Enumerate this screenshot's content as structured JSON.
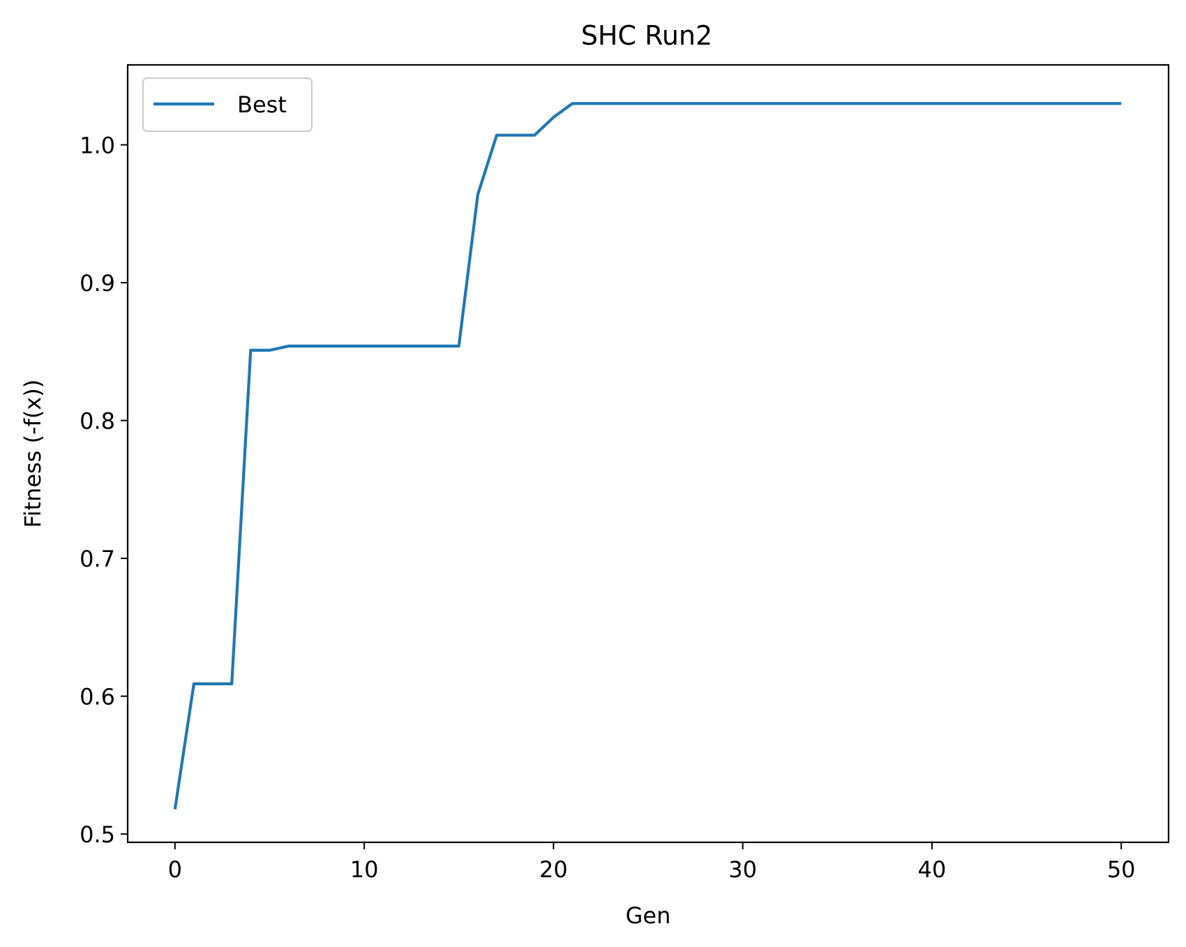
{
  "chart_data": {
    "type": "line",
    "title": "SHC Run2",
    "xlabel": "Gen",
    "ylabel": "Fitness (-f(x))",
    "xlim": [
      -2.5,
      52.5
    ],
    "ylim": [
      0.494,
      1.058
    ],
    "xticks": [
      0,
      10,
      20,
      30,
      40,
      50
    ],
    "xtick_labels": [
      "0",
      "10",
      "20",
      "30",
      "40",
      "50"
    ],
    "yticks": [
      0.5,
      0.6,
      0.7,
      0.8,
      0.9,
      1.0
    ],
    "ytick_labels": [
      "0.5",
      "0.6",
      "0.7",
      "0.8",
      "0.9",
      "1.0"
    ],
    "grid": false,
    "legend": {
      "position": "upper left",
      "entries": [
        "Best"
      ]
    },
    "series": [
      {
        "name": "Best",
        "color": "#1f77b4",
        "x": [
          0,
          1,
          2,
          3,
          4,
          5,
          6,
          7,
          8,
          9,
          10,
          11,
          12,
          13,
          14,
          15,
          16,
          17,
          18,
          19,
          20,
          21,
          22,
          23,
          24,
          25,
          26,
          27,
          28,
          29,
          30,
          31,
          32,
          33,
          34,
          35,
          36,
          37,
          38,
          39,
          40,
          41,
          42,
          43,
          44,
          45,
          46,
          47,
          48,
          49,
          50
        ],
        "values": [
          0.518,
          0.609,
          0.609,
          0.609,
          0.851,
          0.851,
          0.854,
          0.854,
          0.854,
          0.854,
          0.854,
          0.854,
          0.854,
          0.854,
          0.854,
          0.854,
          0.964,
          1.007,
          1.007,
          1.007,
          1.02,
          1.03,
          1.03,
          1.03,
          1.03,
          1.03,
          1.03,
          1.03,
          1.03,
          1.03,
          1.03,
          1.03,
          1.03,
          1.03,
          1.03,
          1.03,
          1.03,
          1.03,
          1.03,
          1.03,
          1.03,
          1.03,
          1.03,
          1.03,
          1.03,
          1.03,
          1.03,
          1.03,
          1.03,
          1.03,
          1.03
        ]
      }
    ]
  }
}
